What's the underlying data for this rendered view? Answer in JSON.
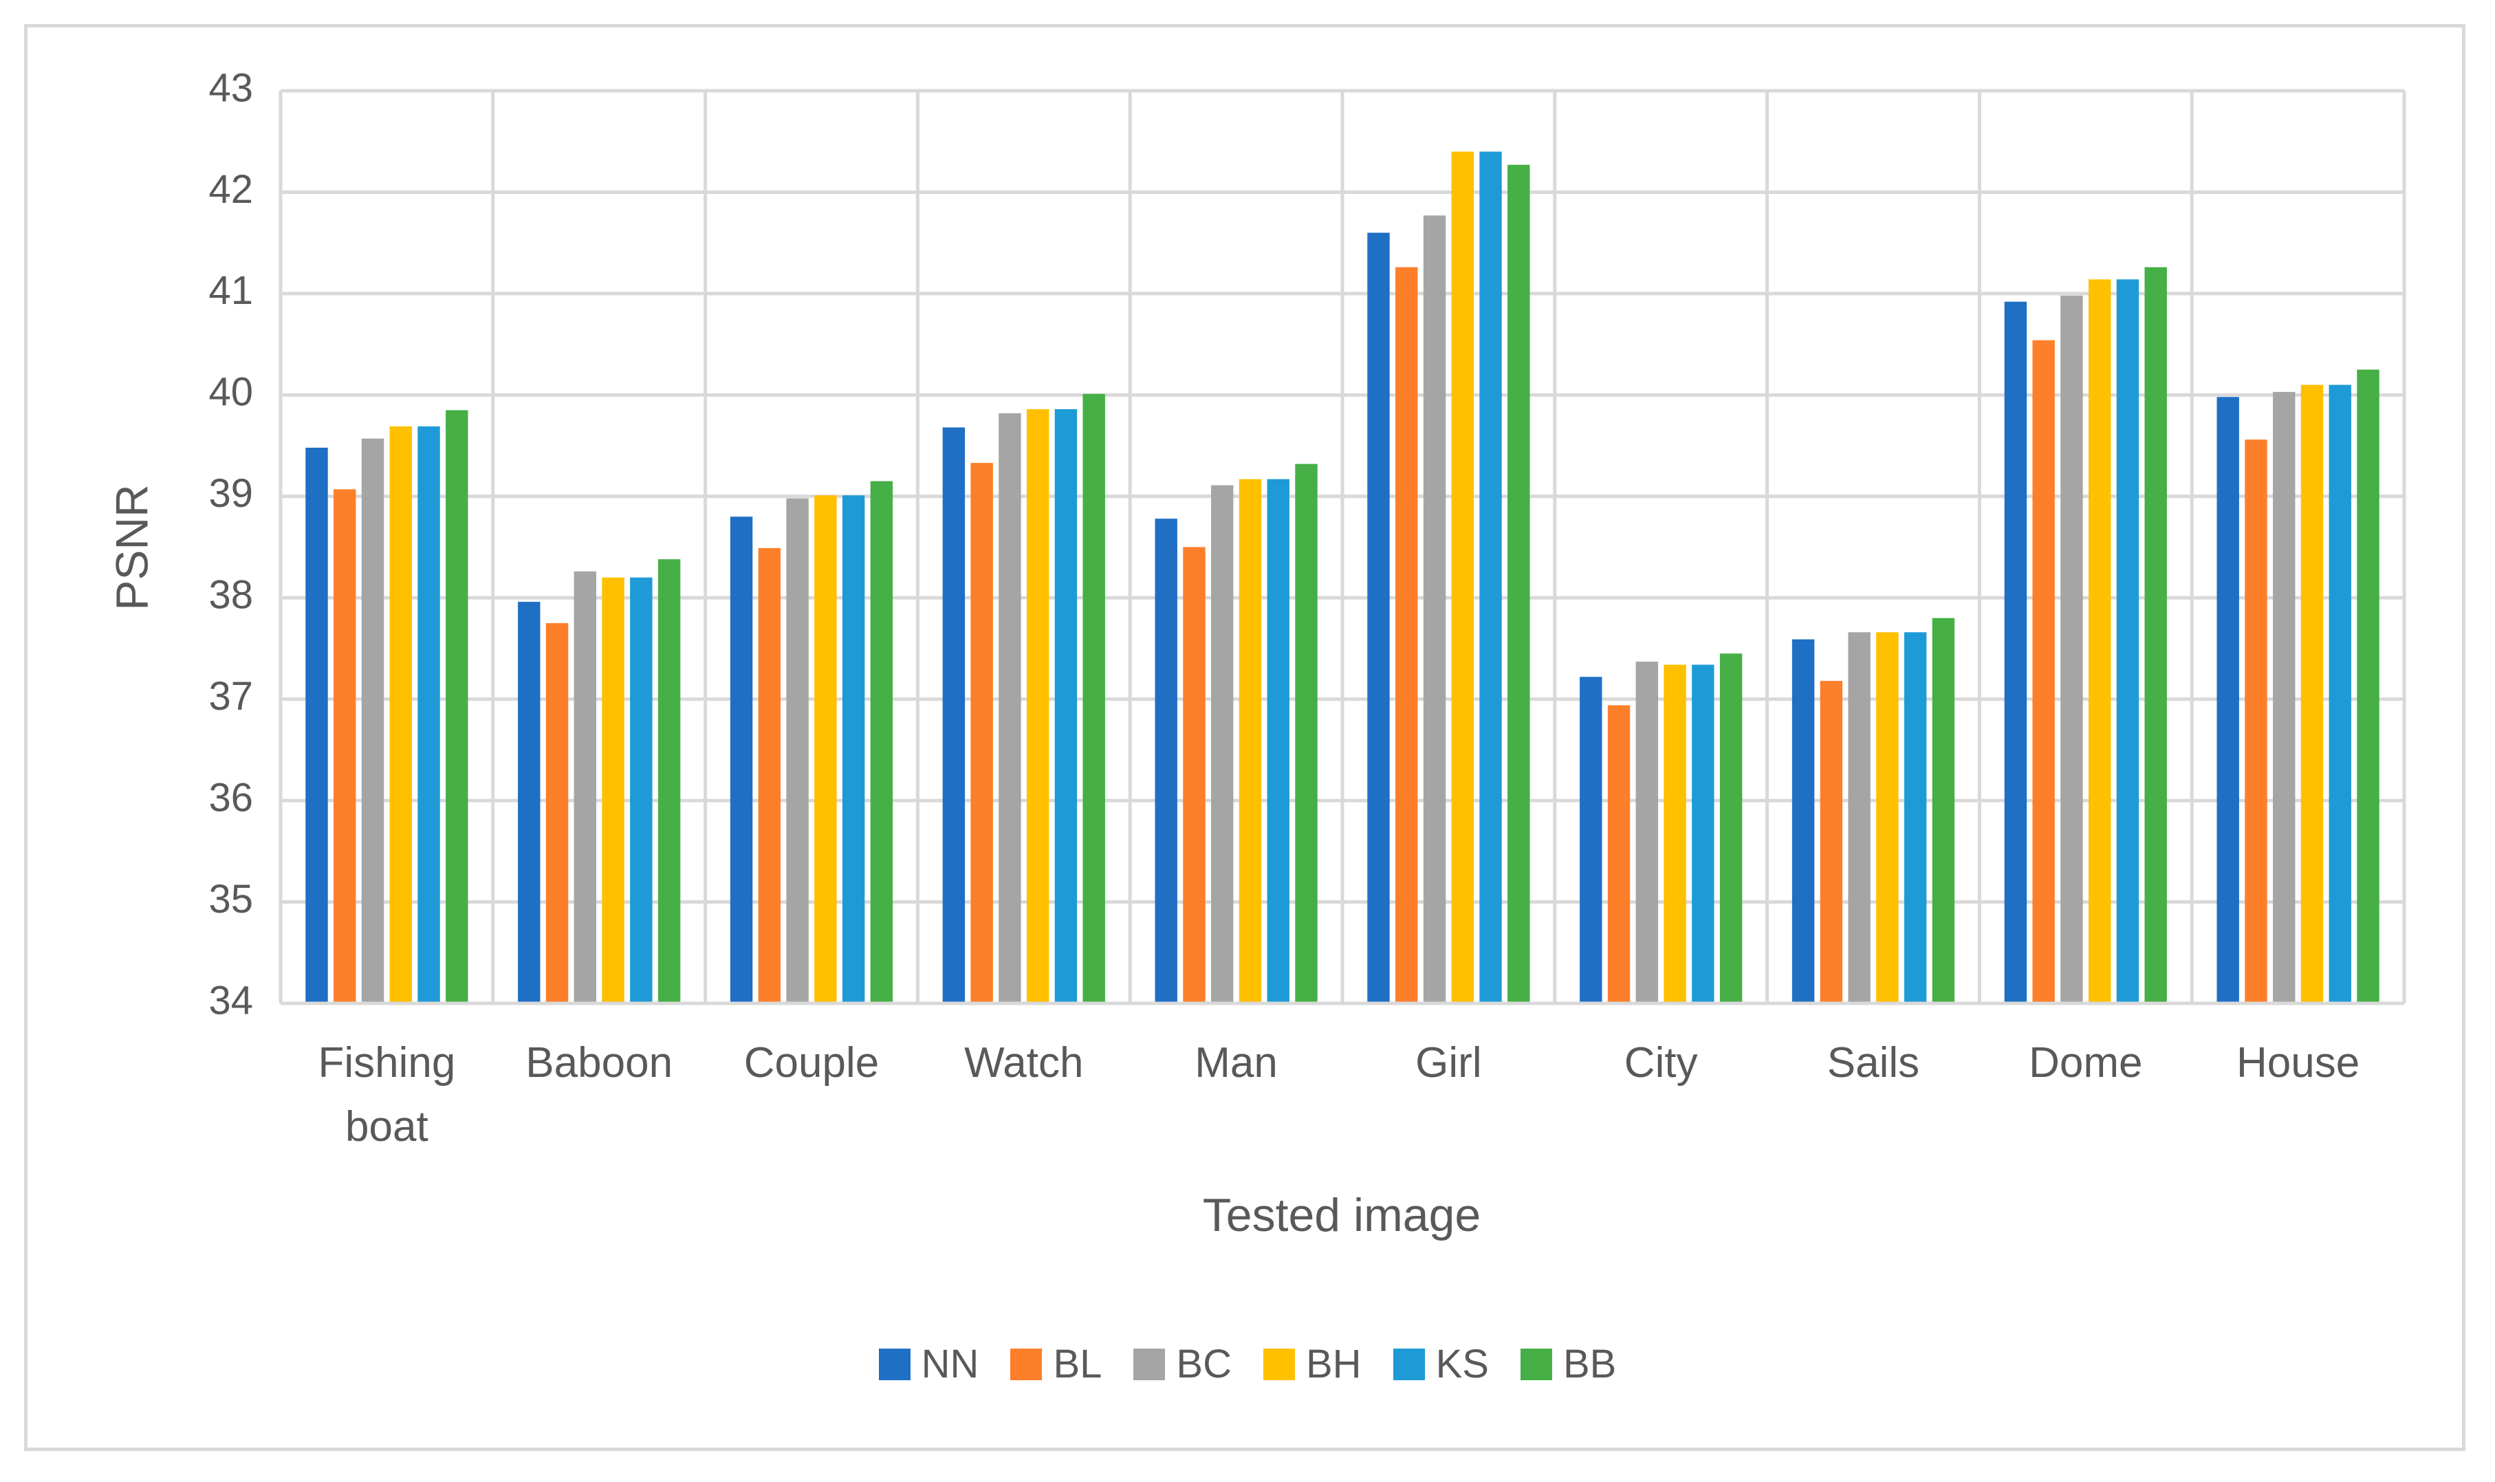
{
  "chart_data": {
    "type": "bar",
    "x_label": "Tested image",
    "y_label": "PSNR",
    "categories": [
      "Fishing boat",
      "Baboon",
      "Couple",
      "Watch",
      "Man",
      "Girl",
      "City",
      "Sails",
      "Dome",
      "House"
    ],
    "series": [
      {
        "name": "NN",
        "color": "#1f6fc5",
        "values": [
          39.48,
          37.96,
          38.8,
          39.68,
          38.78,
          41.6,
          37.22,
          37.59,
          40.92,
          39.98
        ]
      },
      {
        "name": "BL",
        "color": "#fd7f2a",
        "values": [
          39.07,
          37.75,
          38.49,
          39.33,
          38.5,
          41.26,
          36.94,
          37.18,
          40.54,
          39.56
        ]
      },
      {
        "name": "BC",
        "color": "#a5a5a5",
        "values": [
          39.57,
          38.26,
          38.98,
          39.82,
          39.11,
          41.77,
          37.37,
          37.66,
          40.98,
          40.03
        ]
      },
      {
        "name": "BH",
        "color": "#ffc000",
        "values": [
          39.69,
          38.2,
          39.01,
          39.86,
          39.17,
          42.4,
          37.34,
          37.66,
          41.14,
          40.1
        ]
      },
      {
        "name": "KS",
        "color": "#1e9bd7",
        "values": [
          39.69,
          38.2,
          39.01,
          39.86,
          39.17,
          42.4,
          37.34,
          37.66,
          41.14,
          40.1
        ]
      },
      {
        "name": "BB",
        "color": "#46af46",
        "values": [
          39.85,
          38.38,
          39.15,
          40.01,
          39.32,
          42.27,
          37.45,
          37.8,
          41.26,
          40.25
        ]
      }
    ],
    "ylim": [
      34,
      43
    ],
    "yticks": [
      34,
      35,
      36,
      37,
      38,
      39,
      40,
      41,
      42,
      43
    ],
    "grid": true
  }
}
